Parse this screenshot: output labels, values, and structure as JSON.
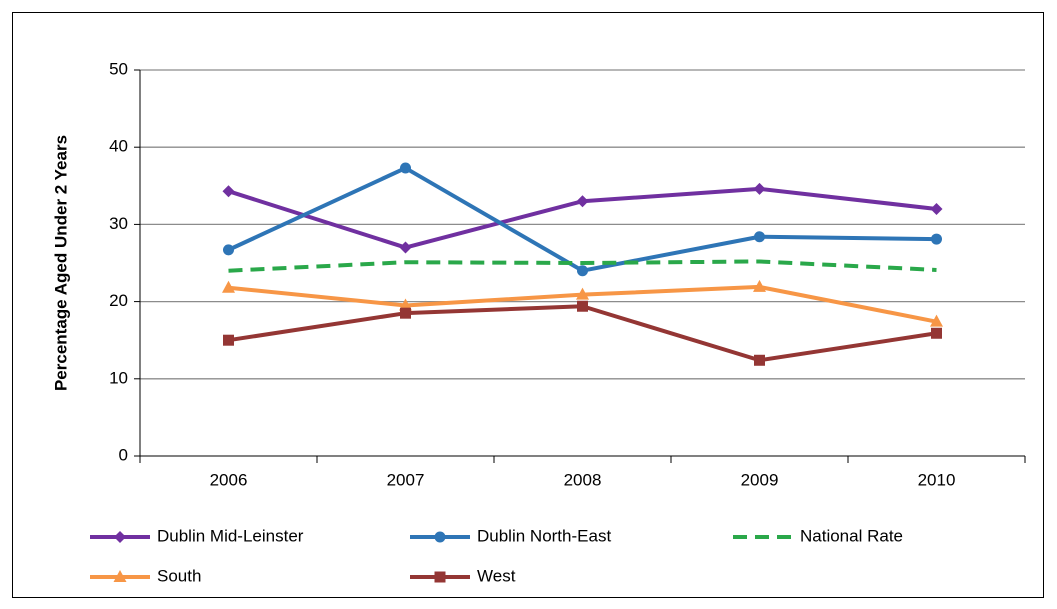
{
  "chart_data": {
    "type": "line",
    "y_label": "Percentage Aged Under 2 Years",
    "categories": [
      "2006",
      "2007",
      "2008",
      "2009",
      "2010"
    ],
    "ylim": [
      0,
      50
    ],
    "yticks": [
      0,
      10,
      20,
      30,
      40,
      50
    ],
    "grid": true,
    "series": [
      {
        "name": "Dublin Mid-Leinster",
        "color": "#7030a0",
        "marker": "diamond",
        "dash": false,
        "values": [
          34.3,
          27.0,
          33.0,
          34.6,
          32.0
        ]
      },
      {
        "name": "Dublin North-East",
        "color": "#2e75b6",
        "marker": "circle",
        "dash": false,
        "values": [
          26.7,
          37.3,
          24.0,
          28.4,
          28.1
        ]
      },
      {
        "name": "National Rate",
        "color": "#2aa84a",
        "marker": "none",
        "dash": true,
        "values": [
          24.0,
          25.1,
          25.0,
          25.2,
          24.1
        ]
      },
      {
        "name": "South",
        "color": "#f79646",
        "marker": "triangle",
        "dash": false,
        "values": [
          21.8,
          19.5,
          20.9,
          21.9,
          17.4
        ]
      },
      {
        "name": "West",
        "color": "#943634",
        "marker": "square",
        "dash": false,
        "values": [
          15.0,
          18.5,
          19.4,
          12.4,
          15.9
        ]
      }
    ]
  }
}
